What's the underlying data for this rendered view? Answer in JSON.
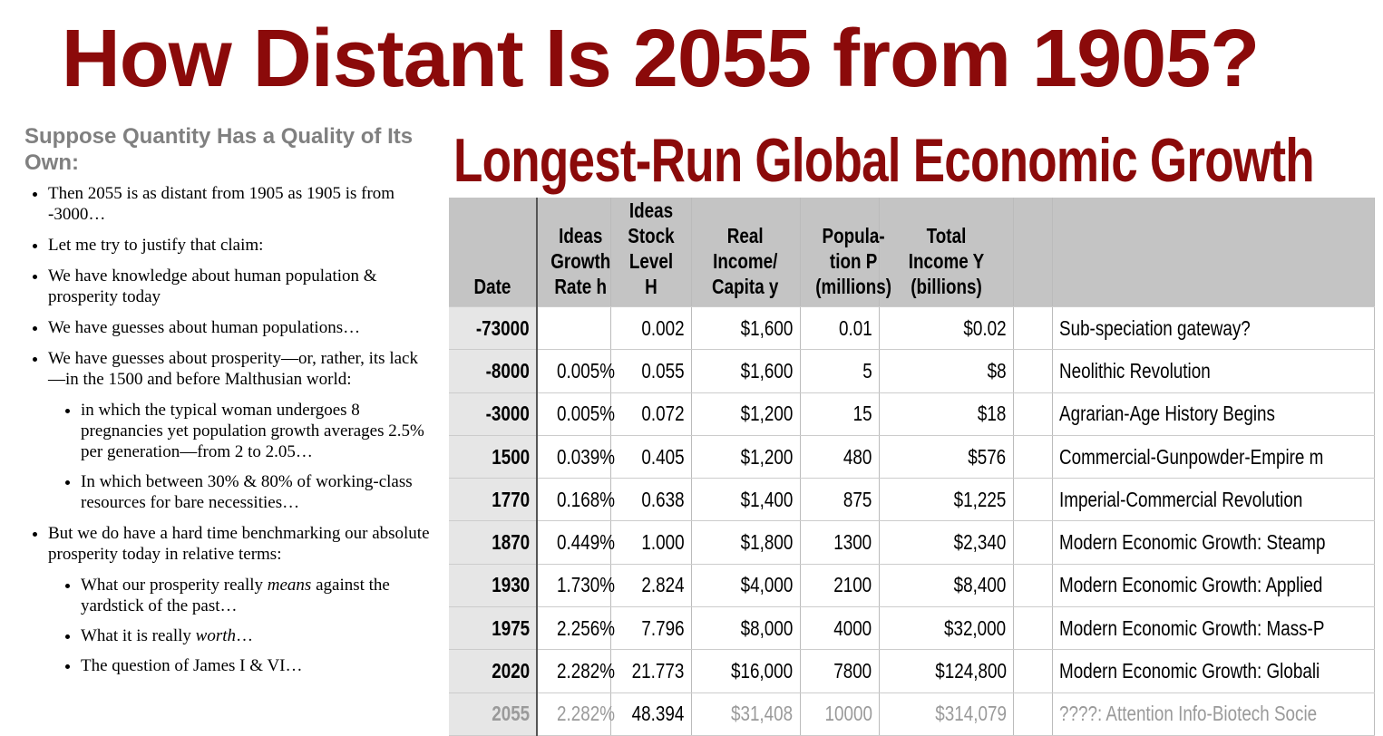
{
  "title": "How Distant Is 2055 from 1905?",
  "left": {
    "heading": "Suppose Quantity Has a Quality of Its Own:",
    "bullets": [
      {
        "parts": [
          "Then 2055 is as distant from 1905 as 1905 is from -3000…"
        ]
      },
      {
        "parts": [
          "Let me try to justify that claim:"
        ]
      },
      {
        "parts": [
          "We have knowledge about human population & prosperity today"
        ]
      },
      {
        "parts": [
          "We have guesses about human populations…"
        ]
      },
      {
        "parts": [
          "We have guesses about prosperity—or, rather, its lack—in the 1500 and before Malthusian world:"
        ],
        "sub": [
          {
            "parts": [
              "in which the typical woman undergoes 8 pregnancies yet population growth averages 2.5% per generation—from 2 to 2.05…"
            ]
          },
          {
            "parts": [
              "In which between 30% & 80% of working-class resources for bare necessities…"
            ]
          }
        ]
      },
      {
        "parts": [
          "But we do have a hard time benchmarking our absolute prosperity today in relative terms:"
        ],
        "sub": [
          {
            "parts": [
              "What our prosperity really ",
              "means",
              " against the yardstick of the past…"
            ]
          },
          {
            "parts": [
              "What it is really ",
              "worth",
              "…"
            ]
          },
          {
            "parts": [
              "The question of James I & VI…"
            ]
          }
        ]
      }
    ]
  },
  "table": {
    "title": "Longest-Run Global Economic Growth",
    "headers": [
      "Date",
      "Ideas\nGrowth\nRate h",
      "Ideas\nStock\nLevel H",
      "Real\nIncome/\nCapita y",
      "Popula-\ntion P\n(millions)",
      "Total Income Y\n(billions)"
    ],
    "rows": [
      [
        "-73000",
        null,
        "0.002",
        "$1,600",
        "0.01",
        "$0.02",
        "Sub-speciation gateway?"
      ],
      [
        "-8000",
        "0.005%",
        "0.055",
        "$1,600",
        "5",
        "$8",
        "Neolithic Revolution"
      ],
      [
        "-3000",
        "0.005%",
        "0.072",
        "$1,200",
        "15",
        "$18",
        "Agrarian-Age History Begins"
      ],
      [
        "1500",
        "0.039%",
        "0.405",
        "$1,200",
        "480",
        "$576",
        "Commercial-Gunpowder-Empire m"
      ],
      [
        "1770",
        "0.168%",
        "0.638",
        "$1,400",
        "875",
        "$1,225",
        "Imperial-Commercial Revolution"
      ],
      [
        "1870",
        "0.449%",
        "1.000",
        "$1,800",
        "1300",
        "$2,340",
        "Modern Economic Growth: Steamp"
      ],
      [
        "1930",
        "1.730%",
        "2.824",
        "$4,000",
        "2100",
        "$8,400",
        "Modern Economic Growth: Applied"
      ],
      [
        "1975",
        "2.256%",
        "7.796",
        "$8,000",
        "4000",
        "$32,000",
        "Modern Economic Growth: Mass-P"
      ],
      [
        "2020",
        "2.282%",
        "21.773",
        "$16,000",
        "7800",
        "$124,800",
        "Modern Economic Growth: Globali"
      ],
      [
        "2055",
        "2.282%",
        "48.394",
        "$31,408",
        "10000",
        "$314,079",
        "????: Attention Info-Biotech Socie"
      ]
    ]
  }
}
